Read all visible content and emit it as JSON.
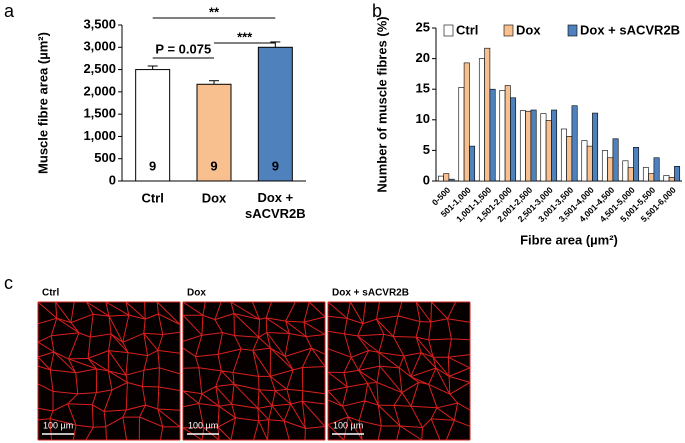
{
  "chart_data": [
    {
      "type": "bar",
      "ylabel": "Muscle fibre area (µm²)",
      "categories": [
        "Ctrl",
        "Dox",
        "Dox + sACVR2B"
      ],
      "values": [
        2500,
        2170,
        3000
      ],
      "errors": [
        80,
        80,
        120
      ],
      "colors": [
        "#ffffff",
        "#f9c08f",
        "#4f81bd"
      ],
      "n": [
        9,
        9,
        9
      ],
      "ylim": [
        0,
        3500
      ],
      "yticks": [
        0,
        500,
        {
          "value": 1000,
          "label": "1,000"
        },
        {
          "value": 1500,
          "label": "1,500"
        },
        {
          "value": 2000,
          "label": "2,000"
        },
        {
          "value": 2500,
          "label": "2,500"
        },
        {
          "value": 3000,
          "label": "3,000"
        },
        {
          "value": 3500,
          "label": "3,500"
        }
      ],
      "annotations": [
        "**",
        "***",
        "P = 0.075"
      ]
    },
    {
      "type": "grouped_bar",
      "ylabel": "Number of muscle fibres (%)",
      "xlabel": "Fibre area (µm²)",
      "categories": [
        "0-500",
        "501-1,000",
        "1,001-1,500",
        "1,501-2,000",
        "2,001-2,500",
        "2,501-3,000",
        "3,001-3,500",
        "3,501-4,000",
        "4,001-4,500",
        "4,501-5,000",
        "5,001-5,500",
        "5,501-6,000"
      ],
      "series": [
        {
          "name": "Ctrl",
          "color": "#ffffff",
          "values": [
            0.8,
            15.3,
            20.0,
            14.8,
            11.5,
            11.0,
            8.5,
            6.6,
            5.0,
            3.3,
            2.2,
            0.9
          ]
        },
        {
          "name": "Dox",
          "color": "#f9c08f",
          "values": [
            1.2,
            19.3,
            21.7,
            15.6,
            11.4,
            9.9,
            7.3,
            5.7,
            3.8,
            2.2,
            1.2,
            0.6
          ]
        },
        {
          "name": "Dox + sACVR2B",
          "color": "#4f81bd",
          "values": [
            0.3,
            5.7,
            15.0,
            13.6,
            11.6,
            11.6,
            12.3,
            11.1,
            6.9,
            5.5,
            3.8,
            2.4
          ]
        }
      ],
      "ylim": [
        0,
        25
      ],
      "yticks": [
        0,
        5,
        10,
        15,
        20,
        25
      ],
      "legend": "top-left"
    }
  ],
  "panel_labels": [
    "a",
    "b",
    "c"
  ],
  "images": {
    "labels": [
      "Ctrl",
      "Dox",
      "Dox + sACVR2B"
    ],
    "scale_bar": "100 µm"
  }
}
